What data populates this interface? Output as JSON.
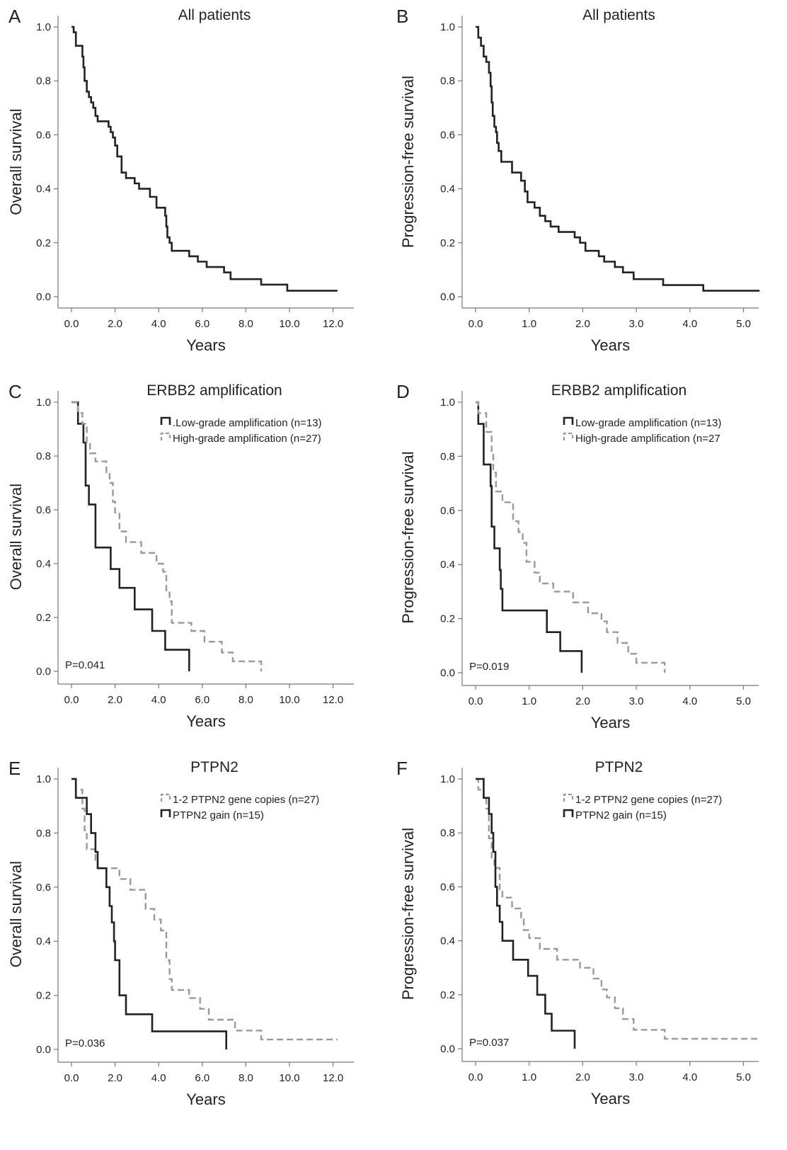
{
  "chart_data": [
    {
      "panel": "A",
      "type": "line",
      "title": "All patients",
      "xlabel": "Years",
      "ylabel": "Overall survival",
      "xticks": [
        "0.0",
        "2.0",
        "4.0",
        "6.0",
        "8.0",
        "10.0",
        "12.0"
      ],
      "yticks": [
        "0.0",
        "0.2",
        "0.4",
        "0.6",
        "0.8",
        "1.0"
      ],
      "xlim": [
        0,
        12
      ],
      "ylim": [
        0,
        1
      ],
      "series": [
        {
          "style": "solid",
          "color": "#222222",
          "points": [
            [
              0,
              1.0
            ],
            [
              0.1,
              0.98
            ],
            [
              0.2,
              0.93
            ],
            [
              0.5,
              0.89
            ],
            [
              0.55,
              0.85
            ],
            [
              0.6,
              0.8
            ],
            [
              0.7,
              0.76
            ],
            [
              0.8,
              0.74
            ],
            [
              0.9,
              0.72
            ],
            [
              1.0,
              0.7
            ],
            [
              1.1,
              0.67
            ],
            [
              1.2,
              0.65
            ],
            [
              1.7,
              0.63
            ],
            [
              1.8,
              0.61
            ],
            [
              1.9,
              0.59
            ],
            [
              2.0,
              0.56
            ],
            [
              2.1,
              0.52
            ],
            [
              2.3,
              0.46
            ],
            [
              2.5,
              0.44
            ],
            [
              2.9,
              0.42
            ],
            [
              3.1,
              0.4
            ],
            [
              3.6,
              0.37
            ],
            [
              3.9,
              0.33
            ],
            [
              4.3,
              0.3
            ],
            [
              4.35,
              0.26
            ],
            [
              4.4,
              0.22
            ],
            [
              4.5,
              0.2
            ],
            [
              4.6,
              0.17
            ],
            [
              5.4,
              0.15
            ],
            [
              5.8,
              0.13
            ],
            [
              6.2,
              0.11
            ],
            [
              7.0,
              0.09
            ],
            [
              7.3,
              0.065
            ],
            [
              8.7,
              0.045
            ],
            [
              9.9,
              0.022
            ],
            [
              12.2,
              0.022
            ]
          ]
        }
      ]
    },
    {
      "panel": "B",
      "type": "line",
      "title": "All patients",
      "xlabel": "Years",
      "ylabel": "Progression-free survival",
      "xticks": [
        "0.0",
        "1.0",
        "2.0",
        "3.0",
        "4.0",
        "5.0"
      ],
      "yticks": [
        "0.0",
        "0.2",
        "0.4",
        "0.6",
        "0.8",
        "1.0"
      ],
      "xlim": [
        0,
        5.3
      ],
      "ylim": [
        0,
        1
      ],
      "series": [
        {
          "style": "solid",
          "color": "#222222",
          "points": [
            [
              0,
              1.0
            ],
            [
              0.05,
              0.96
            ],
            [
              0.1,
              0.93
            ],
            [
              0.15,
              0.89
            ],
            [
              0.2,
              0.87
            ],
            [
              0.25,
              0.83
            ],
            [
              0.28,
              0.78
            ],
            [
              0.3,
              0.72
            ],
            [
              0.32,
              0.67
            ],
            [
              0.35,
              0.63
            ],
            [
              0.38,
              0.61
            ],
            [
              0.4,
              0.57
            ],
            [
              0.43,
              0.54
            ],
            [
              0.48,
              0.5
            ],
            [
              0.68,
              0.46
            ],
            [
              0.85,
              0.43
            ],
            [
              0.92,
              0.39
            ],
            [
              0.97,
              0.35
            ],
            [
              1.1,
              0.33
            ],
            [
              1.2,
              0.3
            ],
            [
              1.3,
              0.28
            ],
            [
              1.4,
              0.26
            ],
            [
              1.55,
              0.24
            ],
            [
              1.85,
              0.22
            ],
            [
              1.95,
              0.2
            ],
            [
              2.05,
              0.17
            ],
            [
              2.3,
              0.15
            ],
            [
              2.4,
              0.13
            ],
            [
              2.6,
              0.11
            ],
            [
              2.75,
              0.09
            ],
            [
              2.95,
              0.065
            ],
            [
              3.5,
              0.043
            ],
            [
              4.25,
              0.022
            ],
            [
              5.3,
              0.022
            ]
          ]
        }
      ]
    },
    {
      "panel": "C",
      "type": "line",
      "title": "ERBB2 amplification",
      "xlabel": "Years",
      "ylabel": "Overall survival",
      "xticks": [
        "0.0",
        "2.0",
        "4.0",
        "6.0",
        "8.0",
        "10.0",
        "12.0"
      ],
      "yticks": [
        "0.0",
        "0.2",
        "0.4",
        "0.6",
        "0.8",
        "1.0"
      ],
      "xlim": [
        0,
        12
      ],
      "ylim": [
        0,
        1
      ],
      "pvalue": "P=0.041",
      "series": [
        {
          "name": ".Low-grade amplification (n=13)",
          "style": "solid",
          "color": "#222222",
          "points": [
            [
              0,
              1.0
            ],
            [
              0.3,
              0.92
            ],
            [
              0.55,
              0.85
            ],
            [
              0.65,
              0.69
            ],
            [
              0.8,
              0.62
            ],
            [
              1.1,
              0.46
            ],
            [
              1.8,
              0.38
            ],
            [
              2.2,
              0.31
            ],
            [
              2.9,
              0.23
            ],
            [
              3.7,
              0.15
            ],
            [
              4.3,
              0.08
            ],
            [
              5.4,
              0.08
            ],
            [
              5.4,
              0.0
            ]
          ]
        },
        {
          "name": "High-grade amplification (n=27)",
          "style": "dashed",
          "color": "#999999",
          "points": [
            [
              0,
              1.0
            ],
            [
              0.3,
              0.96
            ],
            [
              0.5,
              0.92
            ],
            [
              0.7,
              0.85
            ],
            [
              0.85,
              0.81
            ],
            [
              1.1,
              0.78
            ],
            [
              1.6,
              0.74
            ],
            [
              1.75,
              0.7
            ],
            [
              1.9,
              0.63
            ],
            [
              2.0,
              0.59
            ],
            [
              2.2,
              0.52
            ],
            [
              2.5,
              0.48
            ],
            [
              3.2,
              0.44
            ],
            [
              3.9,
              0.4
            ],
            [
              4.2,
              0.37
            ],
            [
              4.35,
              0.3
            ],
            [
              4.5,
              0.26
            ],
            [
              4.6,
              0.18
            ],
            [
              5.5,
              0.15
            ],
            [
              6.1,
              0.11
            ],
            [
              6.9,
              0.07
            ],
            [
              7.4,
              0.037
            ],
            [
              8.7,
              0.037
            ],
            [
              8.7,
              0.0
            ]
          ]
        }
      ]
    },
    {
      "panel": "D",
      "type": "line",
      "title": "ERBB2 amplification",
      "xlabel": "Years",
      "ylabel": "Progression-free survival",
      "xticks": [
        "0.0",
        "1.0",
        "2.0",
        "3.0",
        "4.0",
        "5.0"
      ],
      "yticks": [
        "0.0",
        "0.2",
        "0.4",
        "0.6",
        "0.8",
        "1.0"
      ],
      "xlim": [
        0,
        5.3
      ],
      "ylim": [
        0,
        1
      ],
      "pvalue": "P=0.019",
      "series": [
        {
          "name": "Low-grade amplification (n=13)",
          "style": "solid",
          "color": "#222222",
          "points": [
            [
              0,
              1.0
            ],
            [
              0.05,
              0.92
            ],
            [
              0.15,
              0.77
            ],
            [
              0.28,
              0.69
            ],
            [
              0.3,
              0.54
            ],
            [
              0.35,
              0.46
            ],
            [
              0.45,
              0.38
            ],
            [
              0.47,
              0.31
            ],
            [
              0.5,
              0.23
            ],
            [
              1.33,
              0.15
            ],
            [
              1.58,
              0.08
            ],
            [
              1.98,
              0.08
            ],
            [
              1.98,
              0.0
            ]
          ]
        },
        {
          "name": "High-grade amplification (n=27",
          "style": "dashed",
          "color": "#999999",
          "points": [
            [
              0,
              1.0
            ],
            [
              0.05,
              0.96
            ],
            [
              0.2,
              0.89
            ],
            [
              0.3,
              0.81
            ],
            [
              0.33,
              0.74
            ],
            [
              0.38,
              0.67
            ],
            [
              0.5,
              0.63
            ],
            [
              0.7,
              0.56
            ],
            [
              0.8,
              0.52
            ],
            [
              0.88,
              0.48
            ],
            [
              0.95,
              0.41
            ],
            [
              1.1,
              0.37
            ],
            [
              1.2,
              0.33
            ],
            [
              1.45,
              0.3
            ],
            [
              1.82,
              0.26
            ],
            [
              2.1,
              0.22
            ],
            [
              2.35,
              0.19
            ],
            [
              2.45,
              0.15
            ],
            [
              2.65,
              0.11
            ],
            [
              2.85,
              0.07
            ],
            [
              3.0,
              0.037
            ],
            [
              3.53,
              0.037
            ],
            [
              3.53,
              0.0
            ]
          ]
        }
      ]
    },
    {
      "panel": "E",
      "type": "line",
      "title": "PTPN2",
      "xlabel": "Years",
      "ylabel": "Overall survival",
      "xticks": [
        "0.0",
        "2.0",
        "4.0",
        "6.0",
        "8.0",
        "10.0",
        "12.0"
      ],
      "yticks": [
        "0.0",
        "0.2",
        "0.4",
        "0.6",
        "0.8",
        "1.0"
      ],
      "xlim": [
        0,
        12
      ],
      "ylim": [
        0,
        1
      ],
      "pvalue": "P=0.036",
      "series": [
        {
          "name": "1-2 PTPN2 gene copies (n=27)",
          "style": "dashed",
          "color": "#999999",
          "points": [
            [
              0,
              1.0
            ],
            [
              0.2,
              0.96
            ],
            [
              0.5,
              0.89
            ],
            [
              0.6,
              0.81
            ],
            [
              0.7,
              0.74
            ],
            [
              1.1,
              0.7
            ],
            [
              1.2,
              0.67
            ],
            [
              2.2,
              0.63
            ],
            [
              2.7,
              0.59
            ],
            [
              3.4,
              0.52
            ],
            [
              3.8,
              0.48
            ],
            [
              4.1,
              0.44
            ],
            [
              4.35,
              0.33
            ],
            [
              4.5,
              0.26
            ],
            [
              4.6,
              0.22
            ],
            [
              5.4,
              0.19
            ],
            [
              5.9,
              0.15
            ],
            [
              6.3,
              0.11
            ],
            [
              7.5,
              0.07
            ],
            [
              8.7,
              0.037
            ],
            [
              12.2,
              0.037
            ]
          ]
        },
        {
          "name": "PTPN2 gain (n=15)",
          "style": "solid",
          "color": "#222222",
          "points": [
            [
              0,
              1.0
            ],
            [
              0.2,
              0.93
            ],
            [
              0.7,
              0.87
            ],
            [
              0.9,
              0.8
            ],
            [
              1.1,
              0.73
            ],
            [
              1.2,
              0.67
            ],
            [
              1.6,
              0.6
            ],
            [
              1.75,
              0.53
            ],
            [
              1.85,
              0.47
            ],
            [
              1.95,
              0.4
            ],
            [
              2.0,
              0.33
            ],
            [
              2.2,
              0.2
            ],
            [
              2.5,
              0.13
            ],
            [
              3.7,
              0.067
            ],
            [
              7.1,
              0.067
            ],
            [
              7.1,
              0.0
            ]
          ]
        }
      ]
    },
    {
      "panel": "F",
      "type": "line",
      "title": "PTPN2",
      "xlabel": "Years",
      "ylabel": "Progression-free survival",
      "xticks": [
        "0.0",
        "1.0",
        "2.0",
        "3.0",
        "4.0",
        "5.0"
      ],
      "yticks": [
        "0.0",
        "0.2",
        "0.4",
        "0.6",
        "0.8",
        "1.0"
      ],
      "xlim": [
        0,
        5.3
      ],
      "ylim": [
        0,
        1
      ],
      "pvalue": "P=0.037",
      "series": [
        {
          "name": "1-2 PTPN2 gene copies (n=27)",
          "style": "dashed",
          "color": "#999999",
          "points": [
            [
              0,
              1.0
            ],
            [
              0.05,
              0.96
            ],
            [
              0.15,
              0.93
            ],
            [
              0.2,
              0.89
            ],
            [
              0.25,
              0.78
            ],
            [
              0.3,
              0.7
            ],
            [
              0.35,
              0.67
            ],
            [
              0.45,
              0.59
            ],
            [
              0.5,
              0.56
            ],
            [
              0.68,
              0.52
            ],
            [
              0.85,
              0.48
            ],
            [
              0.9,
              0.44
            ],
            [
              1.0,
              0.41
            ],
            [
              1.2,
              0.37
            ],
            [
              1.52,
              0.33
            ],
            [
              1.95,
              0.3
            ],
            [
              2.2,
              0.26
            ],
            [
              2.35,
              0.22
            ],
            [
              2.45,
              0.19
            ],
            [
              2.6,
              0.15
            ],
            [
              2.75,
              0.11
            ],
            [
              2.95,
              0.07
            ],
            [
              3.53,
              0.037
            ],
            [
              5.3,
              0.037
            ]
          ]
        },
        {
          "name": "PTPN2 gain (n=15)",
          "style": "solid",
          "color": "#222222",
          "points": [
            [
              0,
              1.0
            ],
            [
              0.15,
              0.93
            ],
            [
              0.25,
              0.87
            ],
            [
              0.3,
              0.8
            ],
            [
              0.33,
              0.73
            ],
            [
              0.37,
              0.6
            ],
            [
              0.4,
              0.53
            ],
            [
              0.45,
              0.47
            ],
            [
              0.5,
              0.4
            ],
            [
              0.7,
              0.33
            ],
            [
              0.98,
              0.27
            ],
            [
              1.15,
              0.2
            ],
            [
              1.3,
              0.13
            ],
            [
              1.42,
              0.067
            ],
            [
              1.85,
              0.067
            ],
            [
              1.85,
              0.0
            ]
          ]
        }
      ]
    }
  ]
}
